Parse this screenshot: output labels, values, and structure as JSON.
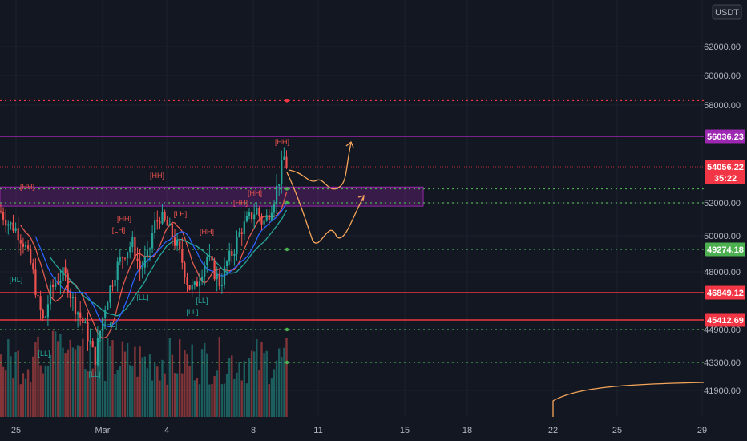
{
  "chart_data": {
    "type": "candlestick",
    "currency": "USDT",
    "y_axis": {
      "ylim": [
        40900,
        65000
      ],
      "ticks": [
        "62000.00",
        "60000.00",
        "58000.00",
        "52000.00",
        "50000.00",
        "48000.00",
        "44900.00",
        "43300.00",
        "41900.00"
      ],
      "tick_values": [
        62000,
        60000,
        58000,
        52000,
        50000,
        48000,
        44900,
        43300,
        41900
      ]
    },
    "x_axis": {
      "tick_labels": [
        "25",
        "Mar",
        "4",
        "8",
        "11",
        "15",
        "18",
        "22",
        "25",
        "29"
      ]
    },
    "price_tags": [
      {
        "text": "56036.23",
        "value": 56036.23,
        "color": "#9c27b0"
      },
      {
        "text": "54056.22",
        "value": 54056.22,
        "color": "#f23645",
        "sub": "35:22"
      },
      {
        "text": "49274.18",
        "value": 49274.18,
        "color": "#4caf50"
      },
      {
        "text": "46849.12",
        "value": 46849.12,
        "color": "#f23645"
      },
      {
        "text": "45412.69",
        "value": 45412.69,
        "color": "#f23645"
      }
    ],
    "horizontal_levels": [
      {
        "value": 58300,
        "style": "dotted",
        "color": "#f23645"
      },
      {
        "value": 56036.23,
        "style": "solid",
        "color": "#9c27b0"
      },
      {
        "value": 54056.22,
        "style": "dotted-thin",
        "color": "#f23645"
      },
      {
        "value": 52800,
        "style": "dotted",
        "color": "#4caf50"
      },
      {
        "value": 52000,
        "style": "dotted",
        "color": "#4caf50"
      },
      {
        "value": 49274.18,
        "style": "dotted",
        "color": "#4caf50"
      },
      {
        "value": 46849.12,
        "style": "solid",
        "color": "#f23645"
      },
      {
        "value": 45412.69,
        "style": "solid",
        "color": "#f23645"
      },
      {
        "value": 44900,
        "style": "dotted",
        "color": "#4caf50"
      },
      {
        "value": 43300,
        "style": "dotted",
        "color": "#4caf50"
      }
    ],
    "zone": {
      "low": 51800,
      "high": 52900,
      "color": "#9c27b0"
    },
    "swing_labels": [
      "[HH]",
      "[HL]",
      "[LL]",
      "[LH]"
    ],
    "colors": {
      "up": "#26a69a",
      "down": "#ef5350",
      "bg": "#131722",
      "grid": "#1e222d",
      "projection": "#f5a55a"
    }
  }
}
